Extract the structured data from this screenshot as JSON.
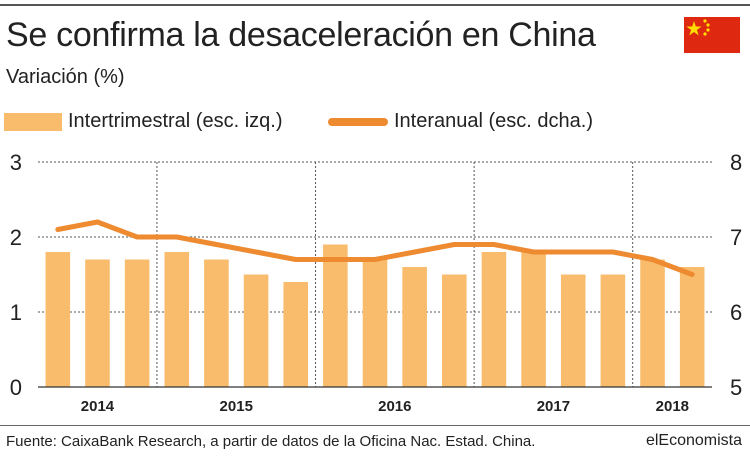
{
  "header": {
    "title": "Se confirma la desaceleración en China",
    "subtitle": "Variación (%)",
    "flag_icon": "china-flag-icon"
  },
  "colors": {
    "bar": "#f8bc6c",
    "line": "#ee8a30",
    "flag_red": "#de2910",
    "flag_star": "#ffde00"
  },
  "chart_data": {
    "type": "bar",
    "categories": [
      "2014",
      "2014",
      "2014",
      "2015",
      "2015",
      "2015",
      "2015",
      "2016",
      "2016",
      "2016",
      "2016",
      "2017",
      "2017",
      "2017",
      "2017",
      "2018",
      "2018"
    ],
    "year_labels": [
      "2014",
      "2015",
      "2016",
      "2017",
      "2018"
    ],
    "series": [
      {
        "name": "Intertrimestral (esc. izq.)",
        "type": "bar",
        "axis": "left",
        "values": [
          1.8,
          1.7,
          1.7,
          1.8,
          1.7,
          1.5,
          1.4,
          1.9,
          1.7,
          1.6,
          1.5,
          1.8,
          1.8,
          1.5,
          1.5,
          1.7,
          1.6
        ]
      },
      {
        "name": "Interanual (esc. dcha.)",
        "type": "line",
        "axis": "right",
        "values": [
          7.1,
          7.2,
          7.0,
          7.0,
          6.9,
          6.8,
          6.7,
          6.7,
          6.7,
          6.8,
          6.9,
          6.9,
          6.8,
          6.8,
          6.8,
          6.7,
          6.5
        ]
      }
    ],
    "y_left": {
      "lim": [
        0,
        3
      ],
      "ticks": [
        "0",
        "1",
        "2",
        "3"
      ]
    },
    "y_right": {
      "lim": [
        5,
        8
      ],
      "ticks": [
        "5",
        "6",
        "7",
        "8"
      ]
    },
    "grid": "dotted",
    "legend_position": "top"
  },
  "footer": {
    "source": "Fuente: CaixaBank Research, a partir de datos de la Oficina Nac. Estad. China.",
    "brand": "elEconomista"
  }
}
